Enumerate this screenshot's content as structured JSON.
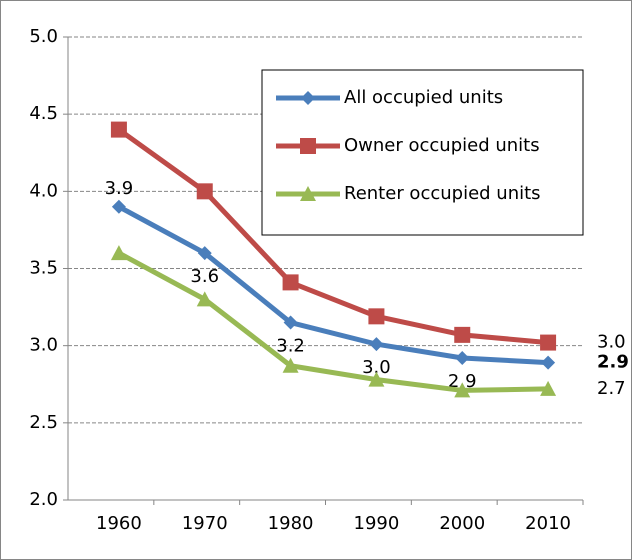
{
  "chart_data": {
    "type": "line",
    "categories": [
      "1960",
      "1970",
      "1980",
      "1990",
      "2000",
      "2010"
    ],
    "series": [
      {
        "name": "All occupied units",
        "color": "#4a7ebb",
        "marker": "diamond",
        "values": [
          3.9,
          3.6,
          3.15,
          3.01,
          2.92,
          2.89
        ],
        "value_labels": [
          "3.9",
          "3.6",
          "3.2",
          "3.0",
          "2.9",
          "2.9"
        ]
      },
      {
        "name": "Owner occupied units",
        "color": "#be4b48",
        "marker": "square",
        "values": [
          4.4,
          4.0,
          3.41,
          3.19,
          3.07,
          3.02
        ],
        "value_labels": [
          null,
          null,
          null,
          null,
          null,
          "3.0"
        ]
      },
      {
        "name": "Renter occupied units",
        "color": "#98b954",
        "marker": "triangle",
        "values": [
          3.6,
          3.3,
          2.87,
          2.78,
          2.71,
          2.72
        ],
        "value_labels": [
          null,
          null,
          null,
          null,
          null,
          "2.7"
        ]
      }
    ],
    "ylim": [
      2.0,
      5.0
    ],
    "yticks": [
      {
        "value": 2.0,
        "label": "2.0"
      },
      {
        "value": 2.5,
        "label": "2.5"
      },
      {
        "value": 3.0,
        "label": "3.0"
      },
      {
        "value": 3.5,
        "label": "3.5"
      },
      {
        "value": 4.0,
        "label": "4.0"
      },
      {
        "value": 4.5,
        "label": "4.5"
      },
      {
        "value": 5.0,
        "label": "5.0"
      }
    ],
    "grid": true,
    "legend": "top-right"
  }
}
